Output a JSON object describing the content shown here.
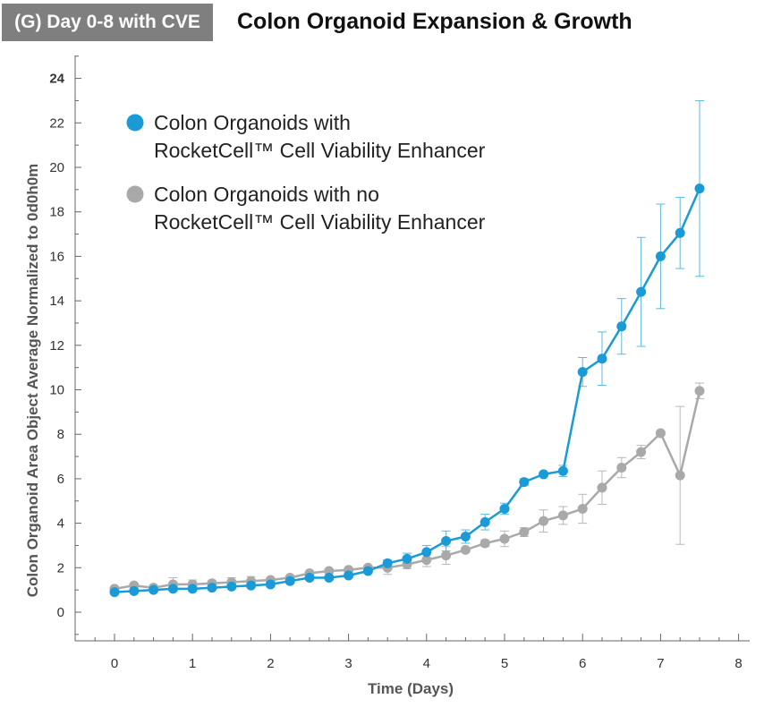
{
  "panel_tag": "(G) Day 0-8 with CVE",
  "chart_data": {
    "type": "line",
    "title": "Colon Organoid Expansion & Growth",
    "xlabel": "Time (Days)",
    "ylabel": "Colon  Organoid Area Object Average Normalized to 0d0h0m",
    "xlim": [
      -0.4,
      8
    ],
    "ylim": [
      -1.3,
      25
    ],
    "x_ticks": [
      "0",
      "1",
      "2",
      "3",
      "4",
      "5",
      "6",
      "7",
      "8"
    ],
    "y_ticks": [
      "0",
      "2",
      "4",
      "6",
      "8",
      "10",
      "12",
      "14",
      "16",
      "18",
      "20",
      "22",
      "24"
    ],
    "legend_position": "top-left",
    "grid": false,
    "series": [
      {
        "name_lines": [
          "Colon Organoids with",
          "RocketCell™ Cell Viability Enhancer"
        ],
        "color": "#1a9ad6",
        "x": [
          0,
          0.25,
          0.5,
          0.75,
          1,
          1.25,
          1.5,
          1.75,
          2,
          2.25,
          2.5,
          2.75,
          3,
          3.25,
          3.5,
          3.75,
          4,
          4.25,
          4.5,
          4.75,
          5,
          5.25,
          5.5,
          5.75,
          6,
          6.25,
          6.5,
          6.75,
          7,
          7.25,
          7.5
        ],
        "y": [
          0.9,
          0.95,
          1.0,
          1.05,
          1.05,
          1.1,
          1.15,
          1.2,
          1.25,
          1.4,
          1.55,
          1.55,
          1.65,
          1.85,
          2.2,
          2.4,
          2.7,
          3.2,
          3.4,
          4.05,
          4.65,
          5.85,
          6.2,
          6.35,
          10.8,
          11.4,
          12.85,
          14.4,
          16.0,
          17.05,
          19.05
        ],
        "err": [
          0.05,
          0.05,
          0.05,
          0.05,
          0.1,
          0.1,
          0.1,
          0.1,
          0.1,
          0.1,
          0.1,
          0.1,
          0.1,
          0.1,
          0.15,
          0.25,
          0.3,
          0.45,
          0.3,
          0.35,
          0.25,
          0.15,
          0.1,
          0.25,
          0.65,
          1.2,
          1.25,
          2.45,
          2.35,
          1.6,
          3.95
        ]
      },
      {
        "name_lines": [
          "Colon Organoids with no",
          "RocketCell™ Cell Viability Enhancer"
        ],
        "color": "#a9a9a9",
        "x": [
          0,
          0.25,
          0.5,
          0.75,
          1,
          1.25,
          1.5,
          1.75,
          2,
          2.25,
          2.5,
          2.75,
          3,
          3.25,
          3.5,
          3.75,
          4,
          4.25,
          4.5,
          4.75,
          5,
          5.25,
          5.5,
          5.75,
          6,
          6.25,
          6.5,
          6.75,
          7,
          7.25,
          7.5
        ],
        "y": [
          1.05,
          1.2,
          1.1,
          1.25,
          1.25,
          1.3,
          1.35,
          1.4,
          1.45,
          1.55,
          1.75,
          1.85,
          1.9,
          2.0,
          2.0,
          2.15,
          2.35,
          2.55,
          2.8,
          3.1,
          3.3,
          3.6,
          4.1,
          4.35,
          4.65,
          5.6,
          6.5,
          7.2,
          8.05,
          6.15,
          9.95
        ],
        "err": [
          0.1,
          0.1,
          0.1,
          0.3,
          0.2,
          0.1,
          0.2,
          0.2,
          0.1,
          0.1,
          0.1,
          0.1,
          0.1,
          0.1,
          0.3,
          0.2,
          0.3,
          0.4,
          0.1,
          0.15,
          0.35,
          0.2,
          0.5,
          0.4,
          0.65,
          0.75,
          0.45,
          0.3,
          0.1,
          3.1,
          0.35
        ]
      }
    ]
  }
}
